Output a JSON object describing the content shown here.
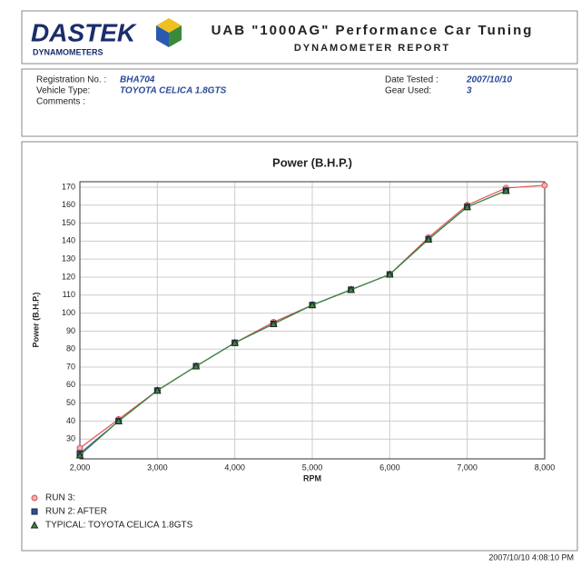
{
  "header": {
    "logo_top": "DASTEK",
    "logo_bottom": "DYNAMOMETERS",
    "title": "UAB \"1000AG\" Performance Car Tuning",
    "subtitle": "DYNAMOMETER REPORT"
  },
  "info": {
    "left": [
      {
        "label": "Registration No. :",
        "value": "BHA704"
      },
      {
        "label": "Vehicle Type:",
        "value": "TOYOTA CELICA 1.8GTS"
      },
      {
        "label": "Comments :"
      }
    ],
    "right": [
      {
        "label": "Date Tested :",
        "value": "2007/10/10"
      },
      {
        "label": "Gear Used:",
        "value": "3"
      }
    ]
  },
  "chart_data": {
    "type": "line",
    "title": "Power (B.H.P.)",
    "x_label": "RPM",
    "y_label": "Power (B.H.P.)",
    "x": [
      2000,
      2500,
      3000,
      3500,
      4000,
      4500,
      5000,
      5500,
      6000,
      6500,
      7000,
      7500,
      8000
    ],
    "series": [
      {
        "name": "RUN 3:",
        "color": "#e05050",
        "marker": "circle",
        "values": [
          25,
          41,
          57,
          70.5,
          83.5,
          95,
          104.5,
          113,
          121.5,
          142,
          160,
          169.5,
          171
        ]
      },
      {
        "name": "RUN 2: AFTER",
        "color": "#3050a0",
        "marker": "square",
        "values": [
          22,
          40,
          57,
          70.5,
          83.5,
          94,
          104.5,
          113,
          121.5,
          141,
          159,
          168,
          null
        ]
      },
      {
        "name": "TYPICAL: TOYOTA CELICA 1.8GTS",
        "color": "#3a8a3a",
        "marker": "triangle",
        "values": [
          21,
          40,
          57,
          70.5,
          83.5,
          94,
          104.5,
          113,
          121.5,
          141,
          159,
          168,
          null
        ]
      }
    ],
    "xlim": [
      2000,
      8000
    ],
    "xticks": [
      {
        "value": 2000,
        "label": "2,000"
      },
      {
        "value": 3000,
        "label": "3,000"
      },
      {
        "value": 4000,
        "label": "4,000"
      },
      {
        "value": 5000,
        "label": "5,000"
      },
      {
        "value": 6000,
        "label": "6,000"
      },
      {
        "value": 7000,
        "label": "7,000"
      },
      {
        "value": 8000,
        "label": "8,000"
      }
    ],
    "ylim": [
      19,
      173
    ],
    "yticks": [
      30,
      40,
      50,
      60,
      70,
      80,
      90,
      100,
      110,
      120,
      130,
      140,
      150,
      160,
      170
    ],
    "grid": true
  },
  "footer": {
    "timestamp": "2007/10/10 4:08:10 PM"
  }
}
